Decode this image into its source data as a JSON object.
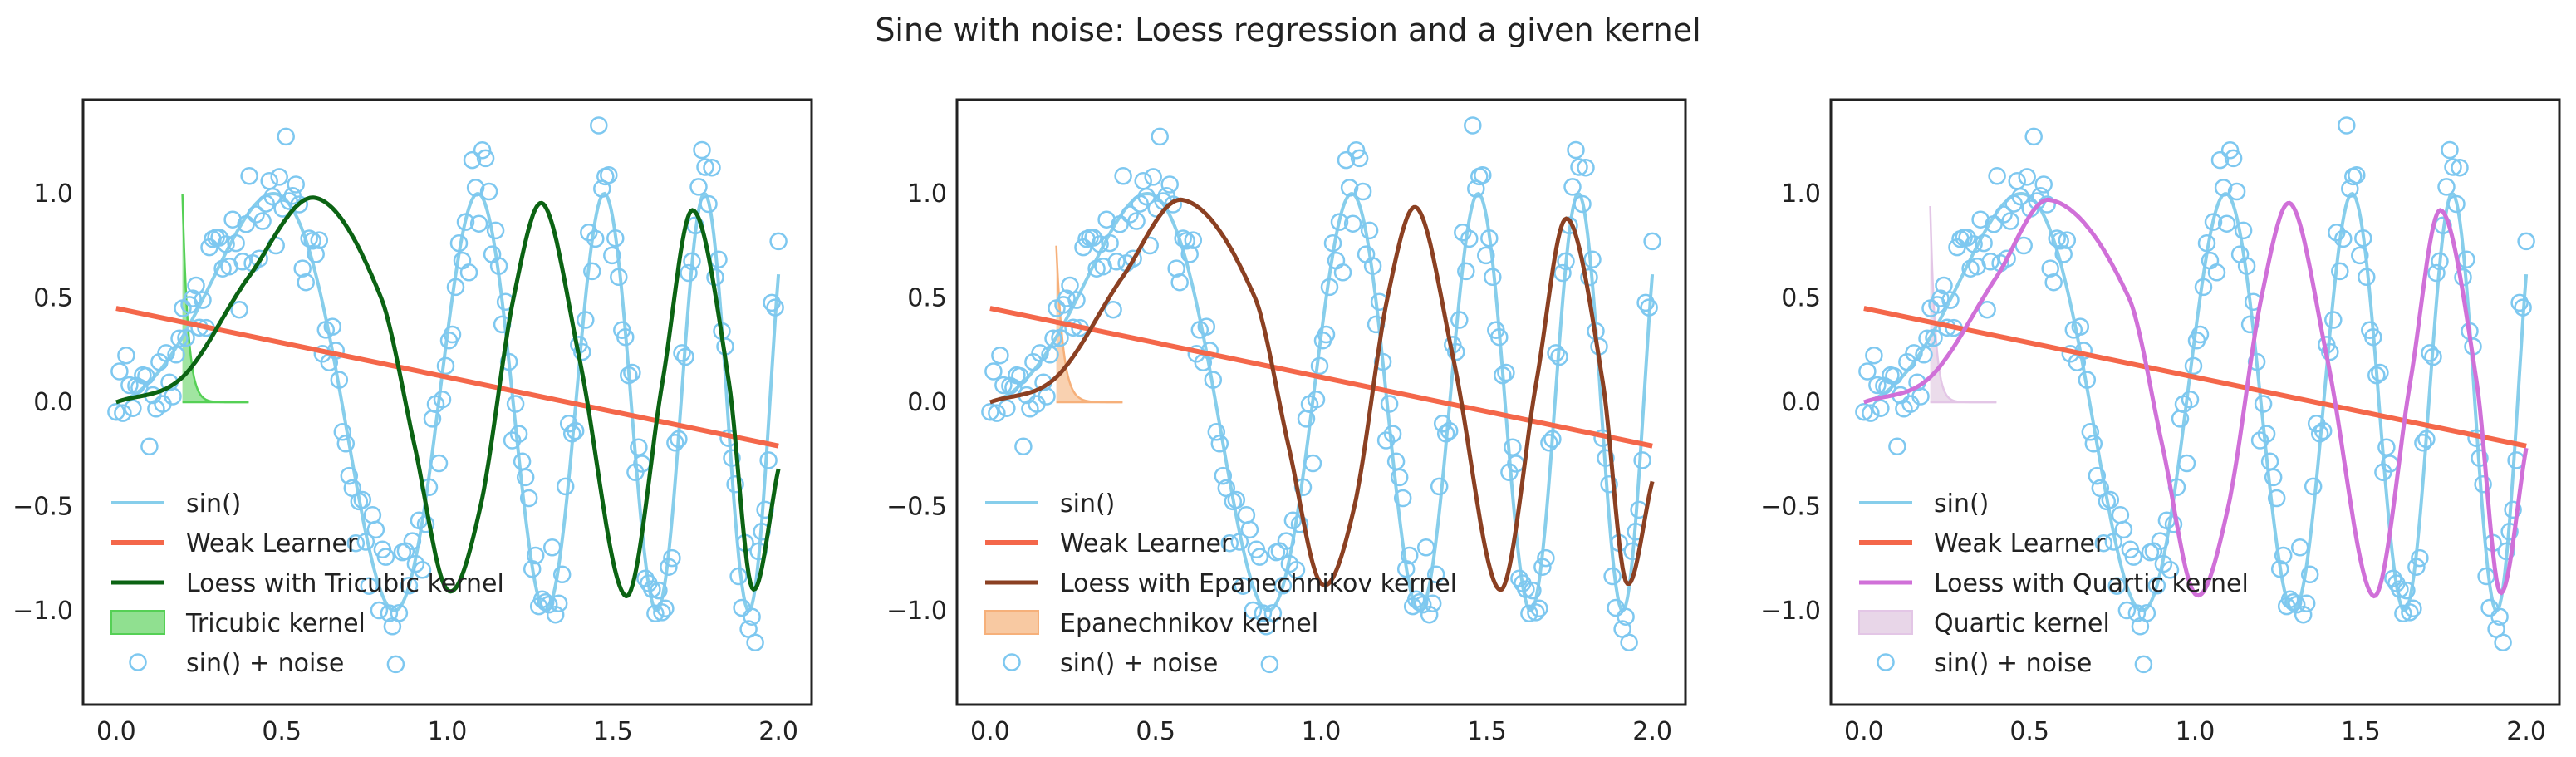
{
  "figure_title": "Sine with noise: Loess regression and a given kernel",
  "colors": {
    "sin": "#87ceeb",
    "weak_learner": "#f4674a",
    "noise": "#7ec8f0",
    "tricubic_line": "#0b6313",
    "tricubic_fill": "#90e090",
    "tricubic_kernel_line": "#55d055",
    "epanechnikov_line": "#8b4022",
    "epanechnikov_fill": "#f8c9a2",
    "epanechnikov_kernel_line": "#f6b07a",
    "quartic_line": "#d070d8",
    "quartic_fill": "#e8d6e8",
    "quartic_kernel_line": "#e3c6e6"
  },
  "chart_data": [
    {
      "type": "line",
      "title": "",
      "xlabel": "",
      "ylabel": "",
      "xlim": [
        -0.1,
        2.1
      ],
      "ylim": [
        -1.45,
        1.45
      ],
      "xticks": [
        "0.0",
        "0.5",
        "1.0",
        "1.5",
        "2.0"
      ],
      "yticks": [
        "−1.0",
        "−0.5",
        "0.0",
        "0.5",
        "1.0"
      ],
      "grid": false,
      "legend_position": "lower-left",
      "legend": [
        "sin()",
        "Weak Learner",
        "Loess with Tricubic kernel",
        "Tricubic kernel",
        "sin() + noise"
      ],
      "series": [
        {
          "name": "sin()",
          "function": "sin(2·pi·x^2 + 0.33·x)",
          "x_range": [
            0,
            2
          ]
        },
        {
          "name": "Weak Learner",
          "x": [
            0,
            2
          ],
          "y": [
            0.45,
            -0.21
          ]
        },
        {
          "name": "Loess with Tricubic kernel",
          "x": [
            0,
            0.2,
            0.4,
            0.6,
            0.8,
            0.9,
            1.0,
            1.1,
            1.2,
            1.29,
            1.4,
            1.54,
            1.65,
            1.74,
            1.85,
            1.92,
            2.0
          ],
          "y": [
            0,
            0.12,
            0.6,
            0.98,
            0.5,
            -0.2,
            -0.9,
            -0.5,
            0.5,
            0.95,
            0.2,
            -0.93,
            0.1,
            0.92,
            0.1,
            -0.89,
            -0.32
          ]
        },
        {
          "name": "Tricubic kernel",
          "peak_x": 0.2,
          "peak_y": 1.0,
          "support": [
            0.2,
            0.4
          ]
        },
        {
          "name": "sin() + noise",
          "x_range": [
            0,
            2
          ],
          "noise_sd": 0.15,
          "count": 200
        }
      ]
    },
    {
      "type": "line",
      "title": "",
      "xlabel": "",
      "ylabel": "",
      "xlim": [
        -0.1,
        2.1
      ],
      "ylim": [
        -1.45,
        1.45
      ],
      "xticks": [
        "0.0",
        "0.5",
        "1.0",
        "1.5",
        "2.0"
      ],
      "yticks": [
        "−1.0",
        "−0.5",
        "0.0",
        "0.5",
        "1.0"
      ],
      "grid": false,
      "legend_position": "lower-left",
      "legend": [
        "sin()",
        "Weak Learner",
        "Loess with Epanechnikov kernel",
        "Epanechnikov kernel",
        "sin() + noise"
      ],
      "series": [
        {
          "name": "sin()",
          "function": "sin(2·pi·x^2 + 0.33·x)",
          "x_range": [
            0,
            2
          ]
        },
        {
          "name": "Weak Learner",
          "x": [
            0,
            2
          ],
          "y": [
            0.45,
            -0.21
          ]
        },
        {
          "name": "Loess with Epanechnikov kernel",
          "x": [
            0,
            0.2,
            0.4,
            0.58,
            0.8,
            0.9,
            1.0,
            1.1,
            1.2,
            1.29,
            1.4,
            1.54,
            1.65,
            1.74,
            1.85,
            1.92,
            2.0
          ],
          "y": [
            0,
            0.12,
            0.6,
            0.97,
            0.5,
            -0.2,
            -0.87,
            -0.5,
            0.5,
            0.93,
            0.2,
            -0.9,
            0.1,
            0.88,
            0.1,
            -0.86,
            -0.38
          ]
        },
        {
          "name": "Epanechnikov kernel",
          "peak_x": 0.2,
          "peak_y": 0.75,
          "support": [
            0.2,
            0.4
          ]
        },
        {
          "name": "sin() + noise",
          "x_range": [
            0,
            2
          ],
          "noise_sd": 0.15,
          "count": 200
        }
      ]
    },
    {
      "type": "line",
      "title": "",
      "xlabel": "",
      "ylabel": "",
      "xlim": [
        -0.1,
        2.1
      ],
      "ylim": [
        -1.45,
        1.45
      ],
      "xticks": [
        "0.0",
        "0.5",
        "1.0",
        "1.5",
        "2.0"
      ],
      "yticks": [
        "−1.0",
        "−0.5",
        "0.0",
        "0.5",
        "1.0"
      ],
      "grid": false,
      "legend_position": "lower-left",
      "legend": [
        "sin()",
        "Weak Learner",
        "Loess with Quartic kernel",
        "Quartic kernel",
        "sin() + noise"
      ],
      "series": [
        {
          "name": "sin()",
          "function": "sin(2·pi·x^2 + 0.33·x)",
          "x_range": [
            0,
            2
          ]
        },
        {
          "name": "Weak Learner",
          "x": [
            0,
            2
          ],
          "y": [
            0.45,
            -0.21
          ]
        },
        {
          "name": "Loess with Quartic kernel",
          "x": [
            0,
            0.2,
            0.4,
            0.56,
            0.8,
            0.9,
            1.0,
            1.1,
            1.2,
            1.29,
            1.4,
            1.54,
            1.65,
            1.74,
            1.85,
            1.92,
            2.0
          ],
          "y": [
            0,
            0.12,
            0.6,
            0.97,
            0.5,
            -0.2,
            -0.92,
            -0.5,
            0.5,
            0.95,
            0.2,
            -0.93,
            0.1,
            0.92,
            0.1,
            -0.91,
            -0.22
          ]
        },
        {
          "name": "Quartic kernel",
          "peak_x": 0.2,
          "peak_y": 0.94,
          "support": [
            0.2,
            0.4
          ]
        },
        {
          "name": "sin() + noise",
          "x_range": [
            0,
            2
          ],
          "noise_sd": 0.15,
          "count": 200
        }
      ]
    }
  ]
}
